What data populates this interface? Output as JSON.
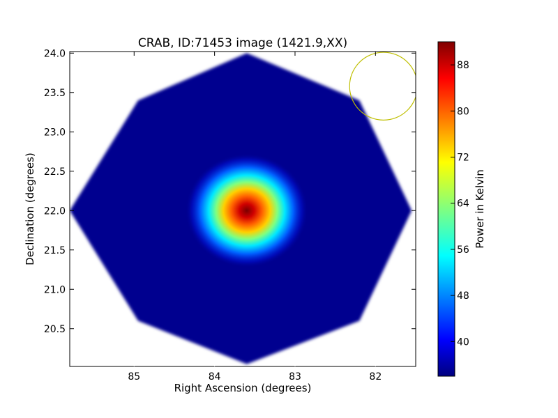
{
  "chart_data": {
    "type": "heatmap",
    "title": "CRAB, ID:71453 image (1421.9,XX)",
    "xlabel": "Right Ascension (degrees)",
    "ylabel": "Declination (degrees)",
    "colorbar_label": "Power in Kelvin",
    "x_axis_reversed": true,
    "xlim": [
      85.8,
      81.5
    ],
    "ylim": [
      20.02,
      24.02
    ],
    "x_ticks": [
      85,
      84,
      83,
      82
    ],
    "y_ticks": [
      20.5,
      21.0,
      21.5,
      22.0,
      22.5,
      23.0,
      23.5,
      24.0
    ],
    "colorbar_range": [
      34,
      92
    ],
    "colorbar_ticks": [
      40,
      48,
      56,
      64,
      72,
      80,
      88
    ],
    "colormap": "jet",
    "background_kelvin": 36,
    "peak": {
      "ra": 83.6,
      "dec": 22.0,
      "kelvin": 92
    },
    "beam_circle": {
      "ra": 81.9,
      "dec": 23.58,
      "radius_deg": 0.37,
      "color": "#bfbf00"
    },
    "footprint": {
      "shape": "octagon",
      "vertices": [
        {
          "ra": 83.6,
          "dec": 24.0
        },
        {
          "ra": 82.2,
          "dec": 23.4
        },
        {
          "ra": 81.55,
          "dec": 22.0
        },
        {
          "ra": 82.2,
          "dec": 20.6
        },
        {
          "ra": 83.6,
          "dec": 20.05
        },
        {
          "ra": 84.95,
          "dec": 20.6
        },
        {
          "ra": 85.8,
          "dec": 22.0
        },
        {
          "ra": 84.95,
          "dec": 23.4
        }
      ]
    }
  },
  "colors": {
    "footprint_fill": "#00008f",
    "jet_stops": [
      "#00007f",
      "#0000ff",
      "#0080ff",
      "#00ffff",
      "#80ff80",
      "#ffff00",
      "#ff8000",
      "#ff0000",
      "#800000"
    ]
  }
}
